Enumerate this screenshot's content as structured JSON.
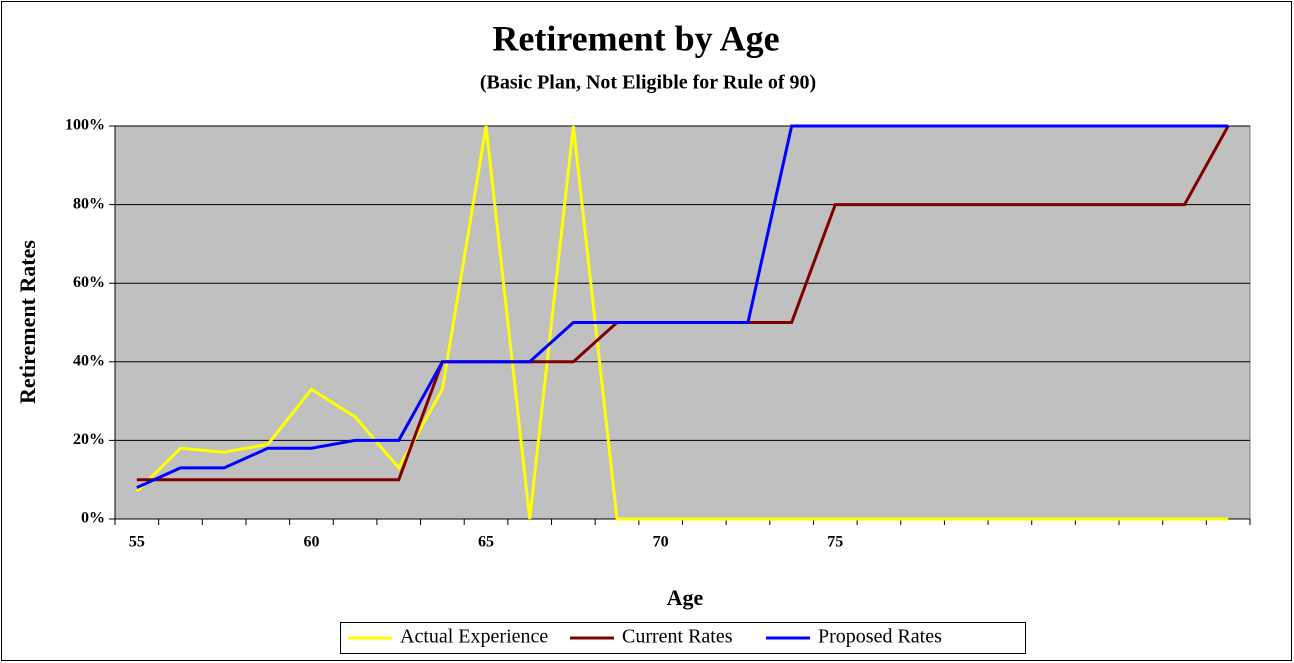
{
  "chart_data": {
    "type": "line",
    "title": "Retirement by Age",
    "subtitle": "(Basic Plan, Not Eligible for Rule of 90)",
    "xlabel": "Age",
    "ylabel": "Retirement Rates",
    "categories": [
      "55",
      null,
      null,
      null,
      "60",
      null,
      null,
      null,
      "65",
      null,
      null,
      null,
      "70",
      null,
      null,
      null,
      "75",
      null,
      null,
      null,
      null,
      null,
      null,
      null,
      null,
      null
    ],
    "series": [
      {
        "name": "Actual Experience",
        "color": "#ffff00",
        "values": [
          7,
          18,
          17,
          19,
          33,
          26,
          13,
          33,
          100,
          0,
          100,
          0,
          0,
          0,
          0,
          0,
          0,
          0,
          0,
          0,
          0,
          0,
          0,
          0,
          0,
          0
        ]
      },
      {
        "name": "Current Rates",
        "color": "#800000",
        "values": [
          10,
          10,
          10,
          10,
          10,
          10,
          10,
          40,
          40,
          40,
          40,
          50,
          50,
          50,
          50,
          50,
          80,
          80,
          80,
          80,
          80,
          80,
          80,
          80,
          80,
          100
        ]
      },
      {
        "name": "Proposed Rates",
        "color": "#0000ff",
        "values": [
          8,
          13,
          13,
          18,
          18,
          20,
          20,
          40,
          40,
          40,
          50,
          50,
          50,
          50,
          50,
          100,
          100,
          100,
          100,
          100,
          100,
          100,
          100,
          100,
          100,
          100
        ]
      }
    ],
    "ylim": [
      0,
      100
    ],
    "yticks": [
      {
        "value": 0,
        "label": "0%"
      },
      {
        "value": 20,
        "label": "20%"
      },
      {
        "value": 40,
        "label": "40%"
      },
      {
        "value": 60,
        "label": "60%"
      },
      {
        "value": 80,
        "label": "80%"
      },
      {
        "value": 100,
        "label": "100%"
      }
    ],
    "grid": true,
    "legend": "bottom",
    "background": "#c0c0c0"
  }
}
